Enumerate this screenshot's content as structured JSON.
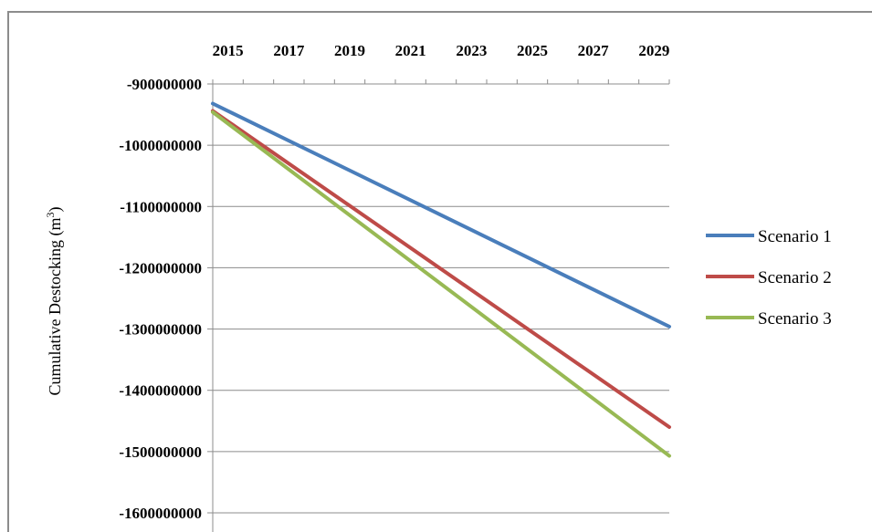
{
  "chart_data": {
    "type": "line",
    "title": "",
    "xlabel": "",
    "ylabel": "Cumulative Destocking (m",
    "ylabel_superscript": "3",
    "ylabel_suffix": ")",
    "x": [
      2015,
      2030
    ],
    "x_ticks": [
      2015,
      2017,
      2019,
      2021,
      2023,
      2025,
      2027,
      2029
    ],
    "xlim": [
      2015,
      2030
    ],
    "ylim": [
      -1600000000,
      -900000000
    ],
    "y_ticks": [
      -900000000,
      -1000000000,
      -1100000000,
      -1200000000,
      -1300000000,
      -1400000000,
      -1500000000,
      -1600000000
    ],
    "y_tick_labels": [
      "-900000000",
      "-1000000000",
      "-1100000000",
      "-1200000000",
      "-1300000000",
      "-1400000000",
      "-1500000000",
      "-1600000000"
    ],
    "x_axis_position": "top",
    "grid": true,
    "legend_position": "right",
    "series": [
      {
        "name": "Scenario 1",
        "color": "#4a7ebb",
        "values": [
          -932000000,
          -1296000000
        ]
      },
      {
        "name": "Scenario 2",
        "color": "#be4b48",
        "values": [
          -944000000,
          -1460000000
        ]
      },
      {
        "name": "Scenario 3",
        "color": "#98b954",
        "values": [
          -946000000,
          -1507000000
        ]
      }
    ]
  }
}
